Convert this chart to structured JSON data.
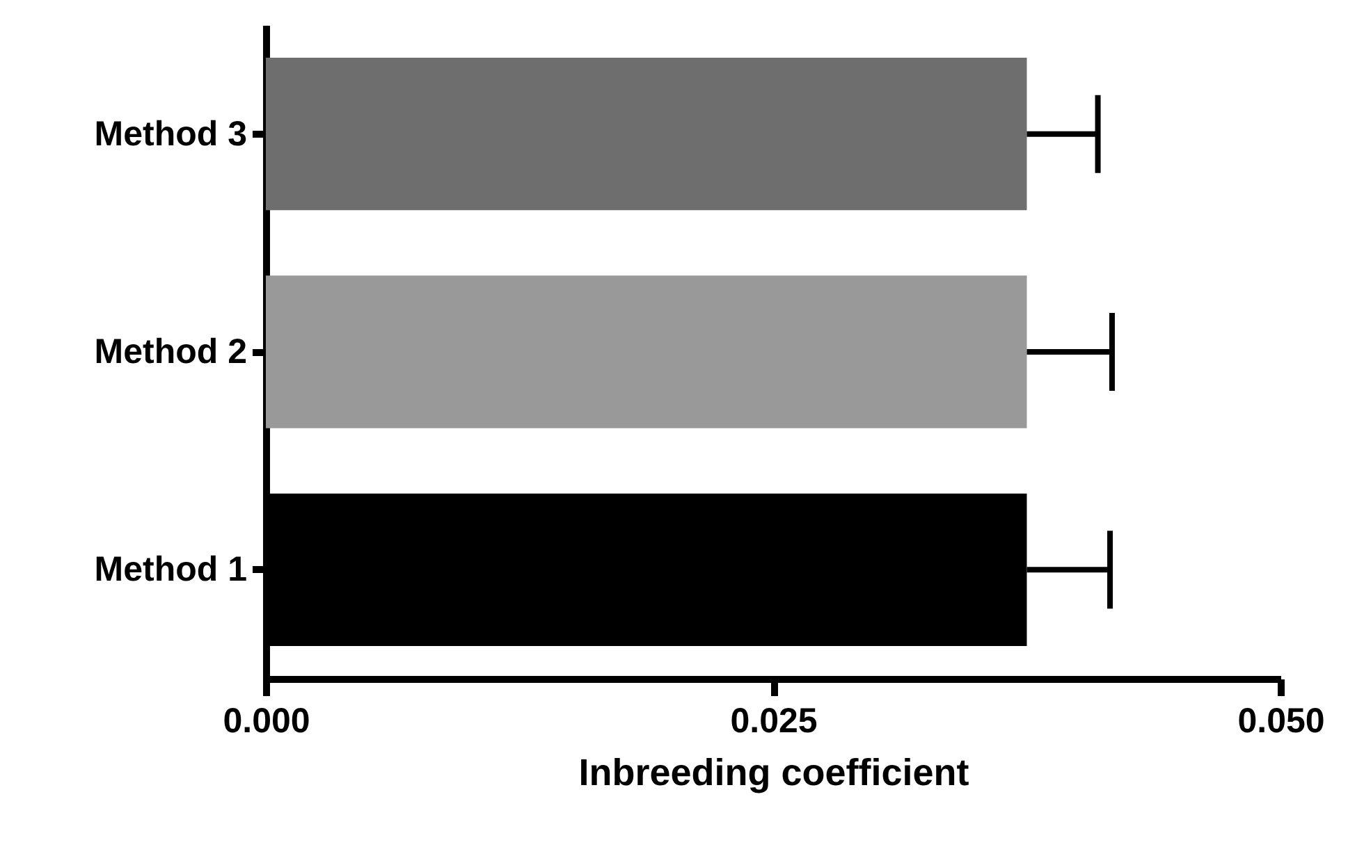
{
  "chart_data": {
    "type": "bar",
    "orientation": "horizontal",
    "xlabel": "Inbreeding coefficient",
    "categories": [
      "Method 3",
      "Method 2",
      "Method 1"
    ],
    "values": [
      0.0375,
      0.0375,
      0.0375
    ],
    "errors": [
      [
        0.0375,
        0.041
      ],
      [
        0.0375,
        0.0417
      ],
      [
        0.0375,
        0.0416
      ]
    ],
    "colors": [
      "#6e6e6e",
      "#999999",
      "#000000"
    ],
    "xlim": [
      0,
      0.05
    ],
    "xticks": [
      {
        "value": 0,
        "label": "0.000"
      },
      {
        "value": 0.025,
        "label": "0.025"
      },
      {
        "value": 0.05,
        "label": "0.050"
      }
    ],
    "grid": false,
    "legend": false
  }
}
